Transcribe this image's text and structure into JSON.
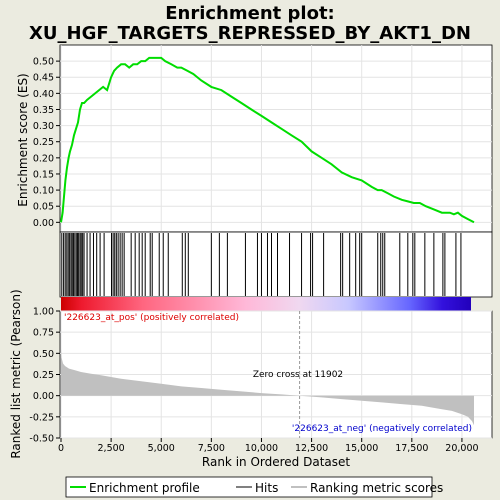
{
  "title_line1": "Enrichment plot:",
  "title_line2": "XU_HGF_TARGETS_REPRESSED_BY_AKT1_DN",
  "chart_data": [
    {
      "type": "line",
      "name": "enrichment",
      "ylabel": "Enrichment score (ES)",
      "xlim": [
        0,
        21500
      ],
      "ylim": [
        -0.03,
        0.55
      ],
      "yticks": [
        0.0,
        0.05,
        0.1,
        0.15,
        0.2,
        0.25,
        0.3,
        0.35,
        0.4,
        0.45,
        0.5
      ],
      "ytick_labels": [
        "0.00",
        "0.05",
        "0.10",
        "0.15",
        "0.20",
        "0.25",
        "0.30",
        "0.35",
        "0.40",
        "0.45",
        "0.50"
      ],
      "grid": true,
      "color": "#00dd00",
      "series": [
        {
          "x": [
            0,
            80,
            150,
            220,
            300,
            380,
            450,
            550,
            650,
            750,
            850,
            950,
            1050,
            1150,
            1300,
            1500,
            1700,
            1900,
            2100,
            2300,
            2500,
            2650,
            2800,
            3000,
            3200,
            3400,
            3600,
            3800,
            4000,
            4200,
            4400,
            4600,
            4800,
            5000,
            5200,
            5500,
            5800,
            6000,
            6300,
            6600,
            7000,
            7500,
            8000,
            8500,
            9000,
            9500,
            10000,
            10500,
            11000,
            11500,
            12000,
            12500,
            13000,
            13500,
            14000,
            14500,
            15000,
            15500,
            15800,
            16000,
            16300,
            16600,
            17000,
            17300,
            17600,
            17900,
            18200,
            18600,
            19000,
            19200,
            19400,
            19600,
            19800,
            20000,
            20300,
            20600
          ],
          "y": [
            0.0,
            0.03,
            0.08,
            0.13,
            0.17,
            0.2,
            0.22,
            0.24,
            0.27,
            0.29,
            0.31,
            0.35,
            0.37,
            0.37,
            0.38,
            0.39,
            0.4,
            0.41,
            0.42,
            0.41,
            0.45,
            0.47,
            0.48,
            0.49,
            0.49,
            0.48,
            0.49,
            0.49,
            0.5,
            0.5,
            0.51,
            0.51,
            0.51,
            0.51,
            0.5,
            0.49,
            0.48,
            0.48,
            0.47,
            0.46,
            0.44,
            0.42,
            0.41,
            0.39,
            0.37,
            0.35,
            0.33,
            0.31,
            0.29,
            0.27,
            0.25,
            0.22,
            0.2,
            0.18,
            0.155,
            0.14,
            0.13,
            0.11,
            0.1,
            0.1,
            0.09,
            0.08,
            0.07,
            0.065,
            0.06,
            0.06,
            0.05,
            0.04,
            0.03,
            0.03,
            0.03,
            0.025,
            0.03,
            0.02,
            0.01,
            0.0
          ]
        }
      ]
    },
    {
      "type": "scatter",
      "name": "hits",
      "hit_positions": [
        40,
        130,
        210,
        290,
        360,
        430,
        500,
        560,
        620,
        690,
        760,
        820,
        880,
        950,
        1010,
        1080,
        1150,
        1300,
        1450,
        1620,
        1780,
        1950,
        2150,
        2520,
        2600,
        2680,
        2760,
        2850,
        2950,
        3050,
        3150,
        3500,
        3700,
        3900,
        4050,
        4200,
        4450,
        4550,
        4900,
        5100,
        5350,
        6050,
        6200,
        6350,
        7500,
        7900,
        8300,
        9200,
        9800,
        10000,
        10300,
        10500,
        10800,
        11400,
        12000,
        12450,
        12550,
        13100,
        13950,
        14050,
        14400,
        14700,
        14900,
        15000,
        15800,
        15950,
        16050,
        16150,
        16900,
        17300,
        17550,
        17650,
        18150,
        18600,
        19050,
        19150,
        19700,
        19950
      ]
    },
    {
      "type": "area",
      "name": "ranking_metric",
      "ylabel": "Ranked list metric (Pearson)",
      "xlabel": "Rank in Ordered Dataset",
      "xlim": [
        0,
        21500
      ],
      "ylim": [
        -0.5,
        1.0
      ],
      "yticks": [
        -0.5,
        -0.25,
        0.0,
        0.25,
        0.5,
        0.75,
        1.0
      ],
      "ytick_labels": [
        "-0.50",
        "-0.25",
        "0.00",
        "0.25",
        "0.50",
        "0.75",
        "1.00"
      ],
      "xticks": [
        0,
        2500,
        5000,
        7500,
        10000,
        12500,
        15000,
        17500,
        20000
      ],
      "xtick_labels": [
        "0",
        "2,500",
        "5,000",
        "7,500",
        "10,000",
        "12,500",
        "15,000",
        "17,500",
        "20,000"
      ],
      "grid": true,
      "color": "#c0c0c0",
      "x": [
        0,
        30,
        100,
        200,
        400,
        700,
        1000,
        1500,
        2000,
        3000,
        4000,
        5000,
        6000,
        7000,
        8000,
        9000,
        10000,
        11000,
        11902,
        13000,
        14000,
        15000,
        16000,
        17000,
        18000,
        19000,
        19500,
        20000,
        20300,
        20500,
        20600
      ],
      "y": [
        0.55,
        0.45,
        0.38,
        0.35,
        0.32,
        0.3,
        0.28,
        0.26,
        0.24,
        0.2,
        0.17,
        0.14,
        0.11,
        0.09,
        0.07,
        0.05,
        0.03,
        0.015,
        0.0,
        -0.02,
        -0.04,
        -0.06,
        -0.08,
        -0.1,
        -0.12,
        -0.16,
        -0.18,
        -0.22,
        -0.25,
        -0.3,
        -0.35
      ]
    }
  ],
  "annotations": {
    "pos_label": "'226623_at_pos' (positively correlated)",
    "neg_label": "'226623_at_neg' (negatively correlated)",
    "zero_cross": "Zero cross at 11902",
    "zero_cross_rank": 11902
  },
  "legend": {
    "items": [
      "Enrichment profile",
      "Hits",
      "Ranking metric scores"
    ],
    "colors": [
      "#00dd00",
      "#000000",
      "#c0c0c0"
    ]
  },
  "colors": {
    "pos_text": "#dd0000",
    "neg_text": "#0000cc",
    "heat_stops": [
      "#cc0000",
      "#ff6680",
      "#ffb8d8",
      "#c8c8ff",
      "#6666ff",
      "#2200bb"
    ]
  }
}
